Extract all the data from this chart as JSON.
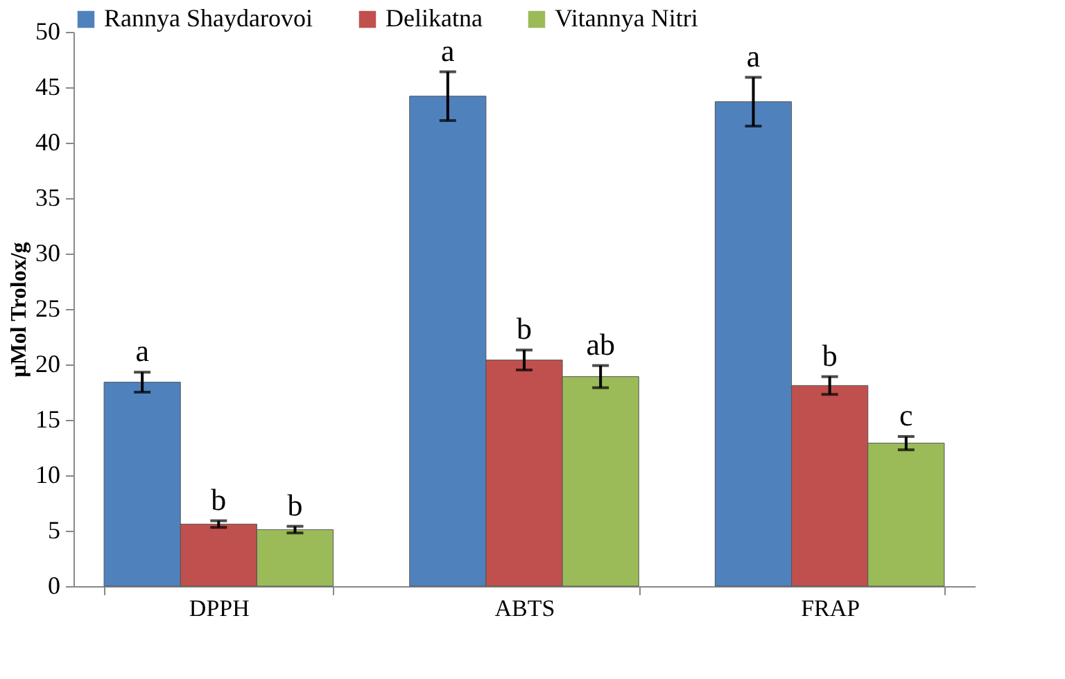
{
  "chart_data": {
    "type": "bar",
    "ylabel": "μMol Trolox/g",
    "categories": [
      "DPPH",
      "ABTS",
      "FRAP"
    ],
    "series": [
      {
        "name": "Rannya Shaydarovoi",
        "color": "#4f81bd",
        "values": [
          18.4,
          44.2,
          43.7
        ],
        "errors": [
          0.9,
          2.2,
          2.2
        ],
        "value_labels": [
          "a",
          "a",
          "a"
        ]
      },
      {
        "name": "Delikatna",
        "color": "#c0504d",
        "values": [
          5.6,
          20.4,
          18.1
        ],
        "errors": [
          0.3,
          0.9,
          0.8
        ],
        "value_labels": [
          "b",
          "b",
          "b"
        ]
      },
      {
        "name": "Vitannya Nitri",
        "color": "#9bbb59",
        "values": [
          5.1,
          18.9,
          12.9
        ],
        "errors": [
          0.3,
          1.0,
          0.6
        ],
        "value_labels": [
          "b",
          "ab",
          "c"
        ]
      }
    ],
    "ylim": [
      0,
      50
    ],
    "yticks": [
      0,
      5,
      10,
      15,
      20,
      25,
      30,
      35,
      40,
      45,
      50
    ],
    "grid": false,
    "legend": "top"
  }
}
